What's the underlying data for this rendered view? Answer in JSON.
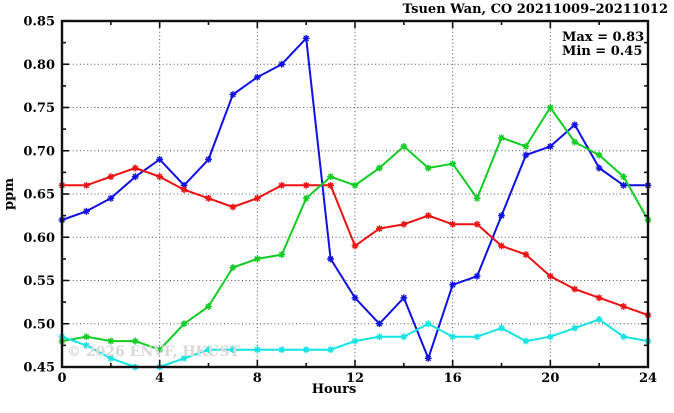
{
  "chart_data": {
    "type": "line",
    "title": "Tsuen Wan, CO 20211009–20211012",
    "xlabel": "Hours",
    "ylabel": "ppm",
    "xlim": [
      0,
      24
    ],
    "ylim": [
      0.45,
      0.85
    ],
    "grid": true,
    "legend_position": "top-right-inside",
    "annotations": {
      "max": "Max = 0.83",
      "min": "Min = 0.45"
    },
    "watermark": "© 2026 ENVF, HKUST",
    "x_ticks_major": [
      0,
      4,
      8,
      12,
      16,
      20,
      24
    ],
    "x_ticks_minor": [
      2,
      6,
      10,
      14,
      18,
      22
    ],
    "y_ticks_major": [
      0.45,
      0.5,
      0.55,
      0.6,
      0.65,
      0.7,
      0.75,
      0.8,
      0.85
    ],
    "y_ticks_minor": [
      0.475,
      0.525,
      0.575,
      0.625,
      0.675,
      0.725,
      0.775,
      0.825
    ],
    "grid_x": [
      4,
      8,
      12,
      16,
      20
    ],
    "grid_y": [
      0.5,
      0.55,
      0.6,
      0.65,
      0.7,
      0.75,
      0.8
    ],
    "x": [
      0,
      1,
      2,
      3,
      4,
      5,
      6,
      7,
      8,
      9,
      10,
      11,
      12,
      13,
      14,
      15,
      16,
      17,
      18,
      19,
      20,
      21,
      22,
      23,
      24
    ],
    "series": [
      {
        "name": "series-blue",
        "color": "#0f0fe6",
        "values": [
          0.62,
          0.63,
          0.645,
          0.67,
          0.69,
          0.66,
          0.69,
          0.765,
          0.785,
          0.8,
          0.83,
          0.575,
          0.53,
          0.5,
          0.53,
          0.46,
          0.545,
          0.555,
          0.625,
          0.695,
          0.705,
          0.73,
          0.68,
          0.66,
          0.66
        ]
      },
      {
        "name": "series-red",
        "color": "#ee1111",
        "values": [
          0.66,
          0.66,
          0.67,
          0.68,
          0.67,
          0.655,
          0.645,
          0.635,
          0.645,
          0.66,
          0.66,
          0.66,
          0.59,
          0.61,
          0.615,
          0.625,
          0.615,
          0.615,
          0.59,
          0.58,
          0.555,
          0.54,
          0.53,
          0.52,
          0.51
        ]
      },
      {
        "name": "series-green",
        "color": "#11cc22",
        "values": [
          0.48,
          0.485,
          0.48,
          0.48,
          0.47,
          0.5,
          0.52,
          0.565,
          0.575,
          0.58,
          0.645,
          0.67,
          0.66,
          0.68,
          0.705,
          0.68,
          0.685,
          0.645,
          0.715,
          0.705,
          0.75,
          0.71,
          0.695,
          0.67,
          0.62
        ]
      },
      {
        "name": "series-cyan",
        "color": "#16e3e3",
        "values": [
          0.485,
          0.475,
          0.46,
          0.45,
          0.45,
          0.46,
          0.47,
          0.47,
          0.47,
          0.47,
          0.47,
          0.47,
          0.48,
          0.485,
          0.485,
          0.5,
          0.485,
          0.485,
          0.495,
          0.48,
          0.485,
          0.495,
          0.505,
          0.485,
          0.48
        ]
      }
    ]
  }
}
